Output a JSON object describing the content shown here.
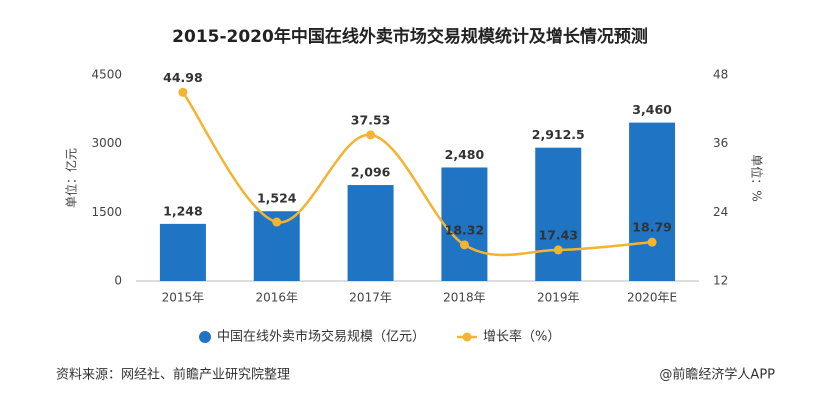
{
  "chart_data": {
    "type": "bar-line",
    "title": "2015-2020年中国在线外卖市场交易规模统计及增长情况预测",
    "categories": [
      "2015年",
      "2016年",
      "2017年",
      "2018年",
      "2019年",
      "2020年E"
    ],
    "series": [
      {
        "name": "中国在线外卖市场交易规模（亿元）",
        "color": "#1f74c3",
        "type": "bar",
        "values": [
          1248,
          1524,
          2096,
          2480,
          2912.5,
          3460
        ],
        "value_labels": [
          "1,248",
          "1,524",
          "2,096",
          "2,480",
          "2,912.5",
          "3,460"
        ]
      },
      {
        "name": "增长率（%）",
        "color": "#f2b431",
        "type": "line",
        "axis": "y2",
        "values": [
          44.98,
          22.3,
          37.53,
          18.32,
          17.43,
          18.79
        ],
        "value_labels": [
          "44.98",
          null,
          "37.53",
          "18.32",
          "17.43",
          "18.79"
        ]
      }
    ],
    "ylabel": "单位：亿元",
    "y2label": "单位：%",
    "ylim": [
      0,
      4500
    ],
    "yticks": [
      0,
      1500,
      3000,
      4500
    ],
    "y2lim": [
      12,
      48
    ],
    "y2ticks": [
      12,
      24,
      36,
      48
    ],
    "source": "资料来源：网经社、前瞻产业研究院整理",
    "credit": "@前瞻经济学人APP"
  }
}
